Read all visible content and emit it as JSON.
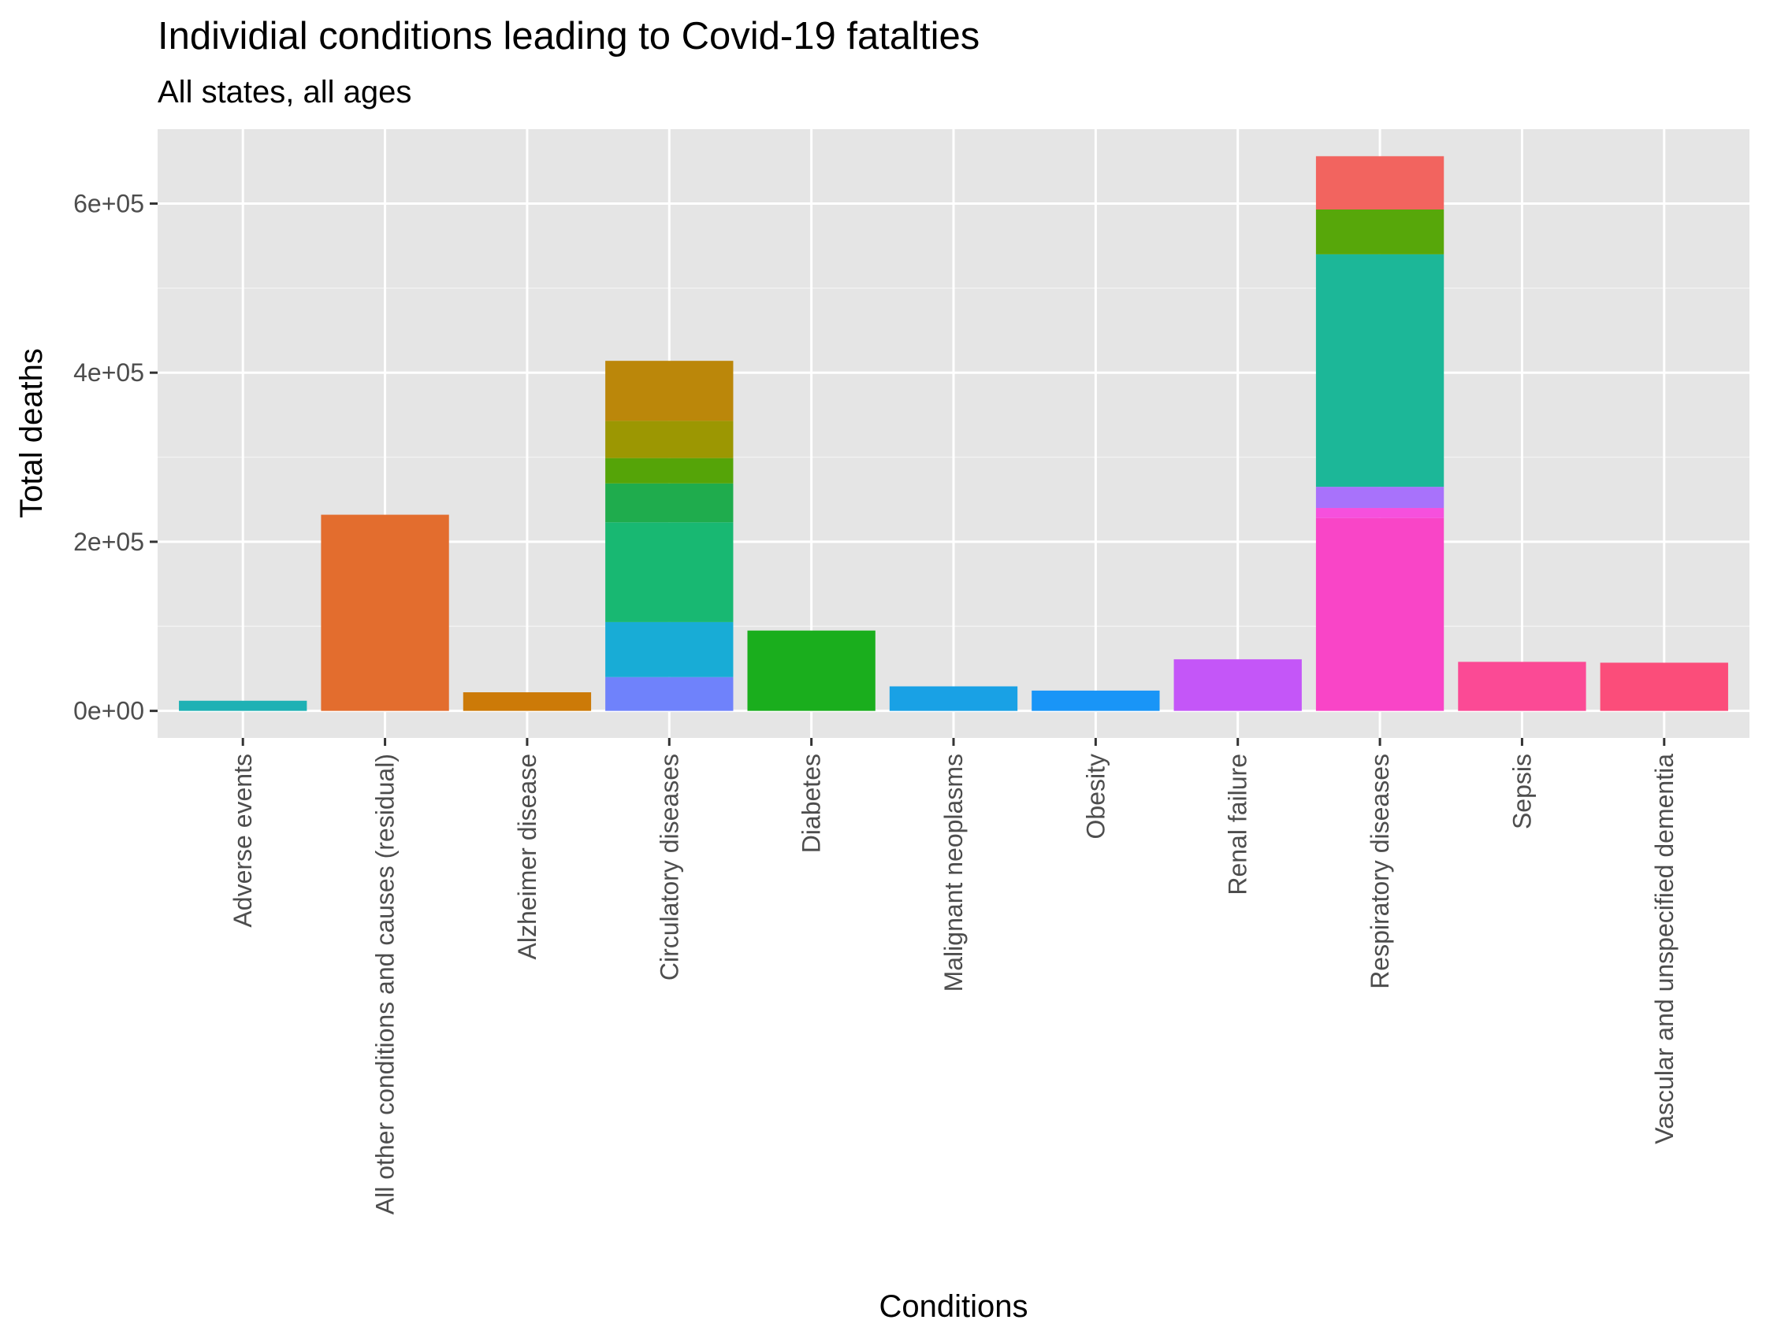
{
  "chart_data": {
    "type": "bar",
    "stacked": true,
    "title": "Individial conditions leading to Covid-19 fatalties",
    "subtitle": "All states, all ages",
    "xlabel": "Conditions",
    "ylabel": "Total deaths",
    "ylim": [
      -32000,
      688000
    ],
    "yticks": [
      0,
      200000,
      400000,
      600000
    ],
    "ytick_labels": [
      "0e+00",
      "2e+05",
      "4e+05",
      "6e+05"
    ],
    "grid": true,
    "legend": "none",
    "categories": [
      "Adverse events",
      "All other conditions and causes (residual)",
      "Alzheimer disease",
      "Circulatory diseases",
      "Diabetes",
      "Malignant neoplasms",
      "Obesity",
      "Renal failure",
      "Respiratory diseases",
      "Sepsis",
      "Vascular and unspecified dementia"
    ],
    "bars": [
      {
        "category": "Adverse events",
        "segments": [
          {
            "value": 12000,
            "color": "#1fb1b4"
          }
        ]
      },
      {
        "category": "All other conditions and causes (residual)",
        "segments": [
          {
            "value": 232000,
            "color": "#e36d2e"
          }
        ]
      },
      {
        "category": "Alzheimer disease",
        "segments": [
          {
            "value": 22000,
            "color": "#cc7a08"
          }
        ]
      },
      {
        "category": "Circulatory diseases",
        "segments": [
          {
            "value": 40000,
            "color": "#6f82fb"
          },
          {
            "value": 65000,
            "color": "#18acd6"
          },
          {
            "value": 118000,
            "color": "#18b872"
          },
          {
            "value": 46000,
            "color": "#1fac4d"
          },
          {
            "value": 30000,
            "color": "#55a408"
          },
          {
            "value": 44000,
            "color": "#9c9702"
          },
          {
            "value": 71000,
            "color": "#bb870a"
          }
        ]
      },
      {
        "category": "Diabetes",
        "segments": [
          {
            "value": 95000,
            "color": "#1aae1d"
          }
        ]
      },
      {
        "category": "Malignant neoplasms",
        "segments": [
          {
            "value": 29000,
            "color": "#19a1e5"
          }
        ]
      },
      {
        "category": "Obesity",
        "segments": [
          {
            "value": 24000,
            "color": "#1995f7"
          }
        ]
      },
      {
        "category": "Renal failure",
        "segments": [
          {
            "value": 61000,
            "color": "#c456f8"
          }
        ]
      },
      {
        "category": "Respiratory diseases",
        "segments": [
          {
            "value": 228000,
            "color": "#f945c7"
          },
          {
            "value": 12000,
            "color": "#f650dd"
          },
          {
            "value": 25000,
            "color": "#a872fb"
          },
          {
            "value": 275000,
            "color": "#1cb798"
          },
          {
            "value": 53000,
            "color": "#57a70a"
          },
          {
            "value": 63000,
            "color": "#f2645f"
          }
        ]
      },
      {
        "category": "Sepsis",
        "segments": [
          {
            "value": 58000,
            "color": "#fb4a95"
          }
        ]
      },
      {
        "category": "Vascular and unspecified dementia",
        "segments": [
          {
            "value": 57000,
            "color": "#fb4d7a"
          }
        ]
      }
    ]
  }
}
